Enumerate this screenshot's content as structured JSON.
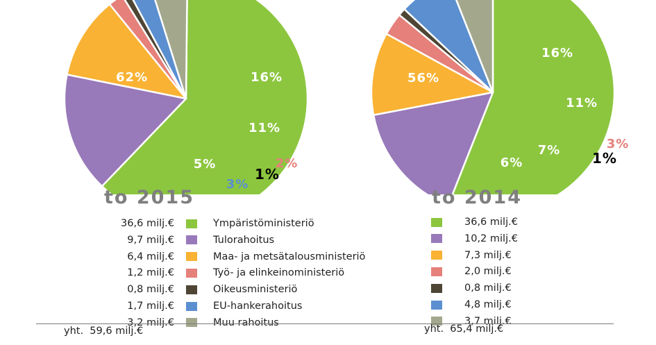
{
  "chart_data": [
    {
      "type": "pie",
      "title": "to 2015",
      "slices": [
        {
          "label": "Ympäristöministeriö",
          "value": 62,
          "display": "62%",
          "amount": "36,6 milj.€",
          "color": "#8cc63f"
        },
        {
          "label": "Tulorahoitus",
          "value": 16,
          "display": "16%",
          "amount": "9,7 milj.€",
          "color": "#9879b9"
        },
        {
          "label": "Maa- ja metsätalousministeriö",
          "value": 11,
          "display": "11%",
          "amount": "6,4 milj.€",
          "color": "#f9b233"
        },
        {
          "label": "Työ- ja elinkeinoministeriö",
          "value": 2,
          "display": "2%",
          "amount": "1,2 milj.€",
          "color": "#e5807a"
        },
        {
          "label": "Oikeusministeriö",
          "value": 1,
          "display": "1%",
          "amount": "0,8 milj.€",
          "color": "#4e4535"
        },
        {
          "label": "EU-hankerahoitus",
          "value": 3,
          "display": "3%",
          "amount": "1,7 milj.€",
          "color": "#5b8fd0"
        },
        {
          "label": "Muu rahoitus",
          "value": 5,
          "display": "5%",
          "amount": "3,2 milj.€",
          "color": "#a3a88d"
        }
      ],
      "total_label": "yht.",
      "total_value": "59,6 milj.€"
    },
    {
      "type": "pie",
      "title": "to 2014",
      "slices": [
        {
          "label": "Ympäristöministeriö",
          "value": 56,
          "display": "56%",
          "amount": "36,6 milj.€",
          "color": "#8cc63f"
        },
        {
          "label": "Tulorahoitus",
          "value": 16,
          "display": "16%",
          "amount": "10,2 milj.€",
          "color": "#9879b9"
        },
        {
          "label": "Maa- ja metsätalousministeriö",
          "value": 11,
          "display": "11%",
          "amount": "7,3 milj.€",
          "color": "#f9b233"
        },
        {
          "label": "Työ- ja elinkeinoministeriö",
          "value": 3,
          "display": "3%",
          "amount": "2,0 milj.€",
          "color": "#e5807a"
        },
        {
          "label": "Oikeusministeriö",
          "value": 1,
          "display": "1%",
          "amount": "0,8 milj.€",
          "color": "#4e4535"
        },
        {
          "label": "EU-hankerahoitus",
          "value": 7,
          "display": "7%",
          "amount": "4,8 milj.€",
          "color": "#5b8fd0"
        },
        {
          "label": "Muu rahoitus",
          "value": 6,
          "display": "6%",
          "amount": "3,7 milj.€",
          "color": "#a3a88d"
        }
      ],
      "total_label": "yht.",
      "total_value": "65,4 milj.€"
    }
  ]
}
